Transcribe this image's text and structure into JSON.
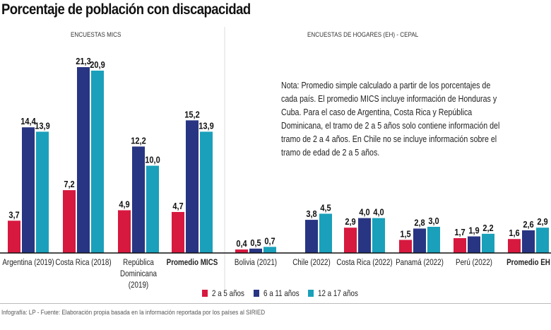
{
  "title": "Porcentaje de población con discapacidad",
  "sections": {
    "mics": "ENCUESTAS MICS",
    "eh": "ENCUESTAS DE HOGARES (EH) - CEPAL"
  },
  "note": "Nota: Promedio simple calculado a partir de los porcentajes de cada país. El promedio MICS incluye información de Honduras y Cuba. Para el caso de Argentina, Costa Rica y República Dominicana, el tramo de 2 a 5 años solo contiene información del tramo de 2 a 4 años. En Chile no se incluye información sobre el tramo de edad de 2 a 5 años.",
  "footer": "Infografía: LP - Fuente: Elaboración propia basada en la información reportada por los países al SIRIED",
  "chart_data": {
    "type": "bar",
    "categories": [
      "Argentina (2019)",
      "Costa Rica (2018)",
      "República Dominicana (2019)",
      "Promedio MICS",
      "Bolivia (2021)",
      "Chile (2022)",
      "Costa Rica (2022)",
      "Panamá (2022)",
      "Perú (2022)",
      "Promedio EH"
    ],
    "bold_categories": [
      "Promedio MICS",
      "Promedio EH"
    ],
    "series": [
      {
        "name": "2 a 5 años",
        "color": "#d7193f",
        "values": [
          3.7,
          7.2,
          4.9,
          4.7,
          0.4,
          null,
          2.9,
          1.5,
          1.7,
          1.6
        ]
      },
      {
        "name": "6 a 11 años",
        "color": "#283583",
        "values": [
          14.4,
          21.3,
          12.2,
          15.2,
          0.5,
          3.8,
          4.0,
          2.8,
          1.9,
          2.6
        ]
      },
      {
        "name": "12 a 17 años",
        "color": "#1aa0ba",
        "values": [
          13.9,
          20.9,
          10.0,
          13.9,
          0.7,
          4.5,
          4.0,
          3.0,
          2.2,
          2.9
        ]
      }
    ],
    "ylim": [
      0,
      22
    ],
    "decimal_separator": ",",
    "legend": "bottom-center",
    "grid": false
  }
}
